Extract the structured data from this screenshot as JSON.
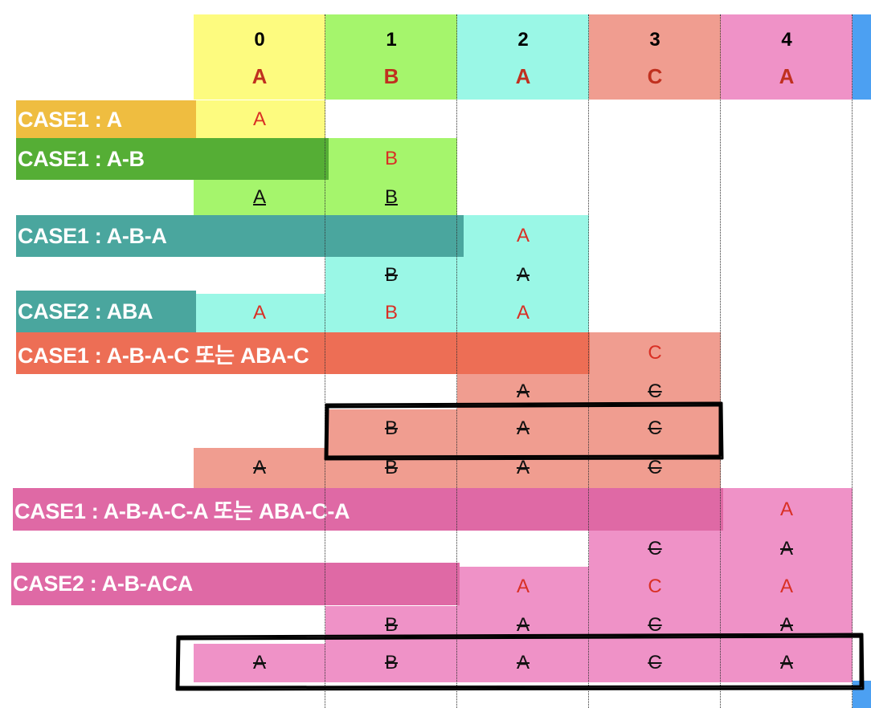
{
  "header": {
    "indices": [
      "0",
      "1",
      "2",
      "3",
      "4"
    ],
    "chars": [
      "A",
      "B",
      "A",
      "C",
      "A"
    ],
    "colors": [
      "#fdfb7f",
      "#a5f56c",
      "#9af7e6",
      "#f09d90",
      "#ef92c7"
    ]
  },
  "cases": [
    {
      "label": "CASE1 : A",
      "color": "#efbd40"
    },
    {
      "label": "CASE1 : A-B",
      "color": "#55ae35"
    },
    {
      "label": "CASE1 : A-B-A",
      "color": "#4aa69e"
    },
    {
      "label": "CASE2 : ABA",
      "color": "#4aa69e"
    },
    {
      "label": "CASE1 : A-B-A-C 또는 ABA-C",
      "color": "#ed6e55"
    },
    {
      "label": "CASE1 : A-B-A-C-A 또는 ABA-C-A",
      "color": "#df69a5"
    },
    {
      "label": "CASE2 : A-B-ACA",
      "color": "#df69a5"
    }
  ],
  "cells": [
    {
      "row": 0,
      "col": 0,
      "char": "A",
      "style": "red",
      "fill": 0
    },
    {
      "row": 1,
      "col": 1,
      "char": "B",
      "style": "red",
      "fill": 1
    },
    {
      "row": 2,
      "col": 0,
      "char": "A",
      "style": "under",
      "fill": 1
    },
    {
      "row": 2,
      "col": 1,
      "char": "B",
      "style": "under",
      "fill": 1
    },
    {
      "row": 3,
      "col": 2,
      "char": "A",
      "style": "red",
      "fill": 2
    },
    {
      "row": 4,
      "col": 1,
      "char": "B",
      "style": "strike",
      "fill": 2
    },
    {
      "row": 4,
      "col": 2,
      "char": "A",
      "style": "strike",
      "fill": 2
    },
    {
      "row": 5,
      "col": 0,
      "char": "A",
      "style": "red",
      "fill": 2
    },
    {
      "row": 5,
      "col": 1,
      "char": "B",
      "style": "red",
      "fill": 2
    },
    {
      "row": 5,
      "col": 2,
      "char": "A",
      "style": "red",
      "fill": 2
    },
    {
      "row": 6,
      "col": 3,
      "char": "C",
      "style": "red",
      "fill": 3
    },
    {
      "row": 7,
      "col": 2,
      "char": "A",
      "style": "strike",
      "fill": 3
    },
    {
      "row": 7,
      "col": 3,
      "char": "C",
      "style": "strike",
      "fill": 3
    },
    {
      "row": 8,
      "col": 1,
      "char": "B",
      "style": "strike",
      "fill": 3
    },
    {
      "row": 8,
      "col": 2,
      "char": "A",
      "style": "strike",
      "fill": 3
    },
    {
      "row": 8,
      "col": 3,
      "char": "C",
      "style": "strike",
      "fill": 3
    },
    {
      "row": 9,
      "col": 0,
      "char": "A",
      "style": "strike",
      "fill": 3
    },
    {
      "row": 9,
      "col": 1,
      "char": "B",
      "style": "strike",
      "fill": 3
    },
    {
      "row": 9,
      "col": 2,
      "char": "A",
      "style": "strike",
      "fill": 3
    },
    {
      "row": 9,
      "col": 3,
      "char": "C",
      "style": "strike",
      "fill": 3
    },
    {
      "row": 10,
      "col": 4,
      "char": "A",
      "style": "red",
      "fill": 4
    },
    {
      "row": 11,
      "col": 3,
      "char": "C",
      "style": "strike",
      "fill": 4
    },
    {
      "row": 11,
      "col": 4,
      "char": "A",
      "style": "strike",
      "fill": 4
    },
    {
      "row": 12,
      "col": 2,
      "char": "A",
      "style": "red",
      "fill": 4
    },
    {
      "row": 12,
      "col": 3,
      "char": "C",
      "style": "red",
      "fill": 4
    },
    {
      "row": 12,
      "col": 4,
      "char": "A",
      "style": "red",
      "fill": 4
    },
    {
      "row": 13,
      "col": 1,
      "char": "B",
      "style": "strike",
      "fill": 4
    },
    {
      "row": 13,
      "col": 2,
      "char": "A",
      "style": "strike",
      "fill": 4
    },
    {
      "row": 13,
      "col": 3,
      "char": "C",
      "style": "strike",
      "fill": 4
    },
    {
      "row": 13,
      "col": 4,
      "char": "A",
      "style": "strike",
      "fill": 4
    },
    {
      "row": 14,
      "col": 0,
      "char": "A",
      "style": "strike",
      "fill": 4
    },
    {
      "row": 14,
      "col": 1,
      "char": "B",
      "style": "strike",
      "fill": 4
    },
    {
      "row": 14,
      "col": 2,
      "char": "A",
      "style": "strike",
      "fill": 4
    },
    {
      "row": 14,
      "col": 3,
      "char": "C",
      "style": "strike",
      "fill": 4
    },
    {
      "row": 14,
      "col": 4,
      "char": "A",
      "style": "strike",
      "fill": 4
    }
  ]
}
